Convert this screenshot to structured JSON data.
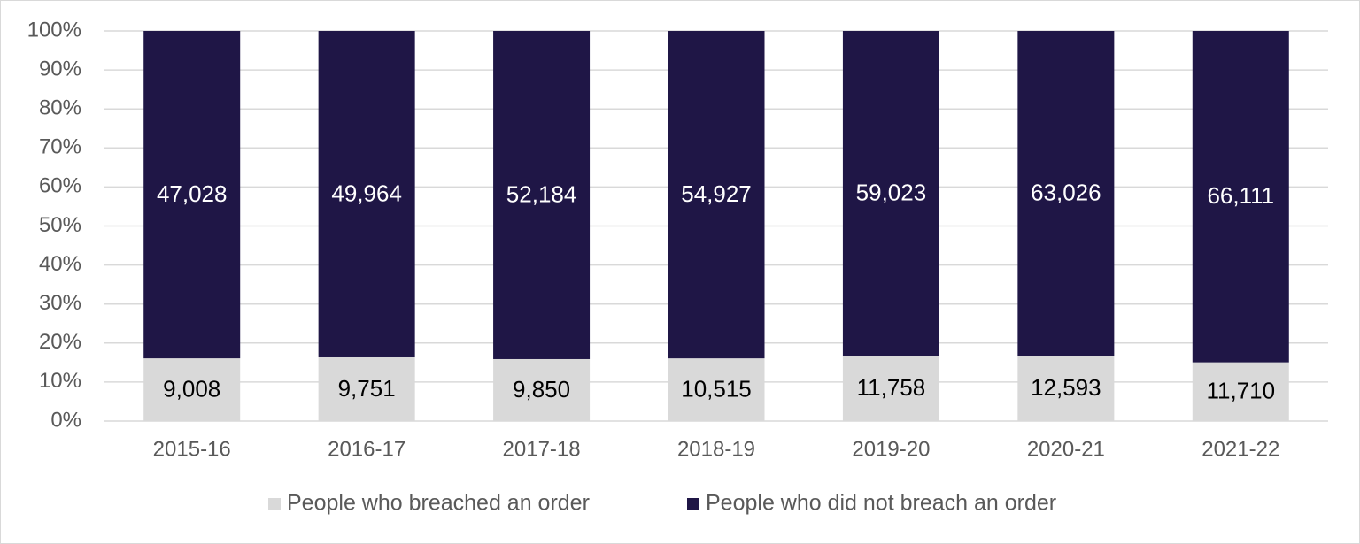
{
  "chart_data": {
    "type": "bar",
    "stacking": "percent",
    "categories": [
      "2015-16",
      "2016-17",
      "2017-18",
      "2018-19",
      "2019-20",
      "2020-21",
      "2021-22"
    ],
    "series": [
      {
        "name": "People who breached an order",
        "color": "#d9d9d9",
        "label_color": "#000000",
        "values": [
          9008,
          9751,
          9850,
          10515,
          11758,
          12593,
          11710
        ],
        "value_labels": [
          "9,008",
          "9,751",
          "9,850",
          "10,515",
          "11,758",
          "12,593",
          "11,710"
        ]
      },
      {
        "name": "People who did not breach an order",
        "color": "#1f1646",
        "label_color": "#ffffff",
        "values": [
          47028,
          49964,
          52184,
          54927,
          59023,
          63026,
          66111
        ],
        "value_labels": [
          "47,028",
          "49,964",
          "52,184",
          "54,927",
          "59,023",
          "63,026",
          "66,111"
        ]
      }
    ],
    "ylim": [
      0,
      100
    ],
    "yticks": [
      {
        "value": 0,
        "label": "0%"
      },
      {
        "value": 10,
        "label": "10%"
      },
      {
        "value": 20,
        "label": "20%"
      },
      {
        "value": 30,
        "label": "30%"
      },
      {
        "value": 40,
        "label": "40%"
      },
      {
        "value": 50,
        "label": "50%"
      },
      {
        "value": 60,
        "label": "60%"
      },
      {
        "value": 70,
        "label": "70%"
      },
      {
        "value": 80,
        "label": "80%"
      },
      {
        "value": 90,
        "label": "90%"
      },
      {
        "value": 100,
        "label": "100%"
      }
    ],
    "grid": true,
    "legend": "bottom"
  }
}
